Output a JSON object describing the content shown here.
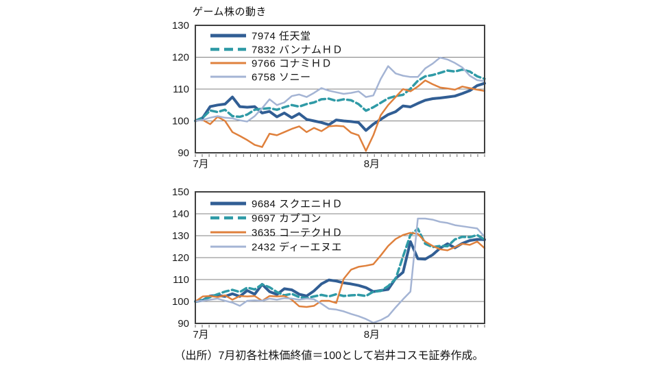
{
  "page": {
    "source_note": "（出所）7月初各社株価終値＝100として岩井コスモ証券作成。"
  },
  "chart_data": [
    {
      "type": "line",
      "title": "ゲーム株の動き",
      "ylim": [
        90,
        130
      ],
      "yticks": [
        90,
        100,
        110,
        120,
        130
      ],
      "grid": true,
      "legend_position": "top-left",
      "x_axis": {
        "labels": [
          "7月",
          "8月"
        ],
        "month_fraction": 0.61,
        "minor_tick_count": 43
      },
      "series": [
        {
          "code": "7974",
          "name": "7974 任天堂",
          "color": "#315E94",
          "style": "solid",
          "width": 4,
          "values": [
            100,
            101,
            104.5,
            105,
            105.3,
            107.5,
            104.5,
            104.3,
            104.5,
            102.5,
            103,
            101.3,
            102.5,
            101,
            102.3,
            100.5,
            100,
            99.5,
            98.8,
            100.3,
            100,
            99.8,
            99.5,
            97,
            99,
            100.5,
            102,
            102.9,
            104.7,
            104.4,
            105.5,
            106.5,
            107,
            107.2,
            107.5,
            107.8,
            108.6,
            109.5,
            111.1,
            111.8
          ]
        },
        {
          "code": "7832",
          "name": "7832 バンナムＨＤ",
          "color": "#2F9AA6",
          "style": "dashed",
          "width": 3.5,
          "values": [
            100,
            101,
            103.3,
            102.8,
            103.5,
            101.5,
            101.3,
            102,
            103.5,
            103.8,
            104,
            103.5,
            104.3,
            105,
            104.5,
            105.3,
            105.8,
            106.8,
            107,
            106.3,
            106.8,
            106.5,
            105.3,
            103.2,
            104.3,
            105.7,
            107.1,
            107.8,
            108.2,
            110.1,
            112.6,
            114,
            114.4,
            115.1,
            115.8,
            115.5,
            116.1,
            115.5,
            114,
            113.2
          ]
        },
        {
          "code": "9766",
          "name": "9766 コナミＨＤ",
          "color": "#DF803C",
          "style": "solid",
          "width": 2.5,
          "values": [
            100,
            100.3,
            99,
            101.3,
            100,
            96.5,
            95.3,
            94,
            92.5,
            91.8,
            96,
            95.5,
            96.5,
            97.5,
            98.3,
            96.5,
            97.8,
            96.8,
            98.3,
            98.5,
            98.3,
            96.3,
            95.5,
            90.6,
            95.5,
            101.8,
            105,
            107.5,
            110,
            109.3,
            110.8,
            112.7,
            111.5,
            110.5,
            110.2,
            109.8,
            110.8,
            110.3,
            109.8,
            109.4
          ]
        },
        {
          "code": "6758",
          "name": "6758 ソニー",
          "color": "#A4B4D4",
          "style": "solid",
          "width": 2.5,
          "values": [
            100,
            100.3,
            101,
            101.5,
            101,
            100.8,
            100.2,
            99.8,
            101.5,
            104,
            106.8,
            105,
            105.8,
            107.8,
            108.3,
            107.5,
            108.8,
            110.3,
            109.5,
            109,
            108.5,
            108.8,
            109.3,
            107.5,
            108,
            113.2,
            117.2,
            114.9,
            114.2,
            113.8,
            113.8,
            116.5,
            118,
            119.9,
            119.3,
            118.2,
            116.8,
            114.2,
            112.8,
            112.5
          ]
        }
      ]
    },
    {
      "type": "line",
      "title": "",
      "ylim": [
        90,
        150
      ],
      "yticks": [
        90,
        100,
        110,
        120,
        130,
        140,
        150
      ],
      "grid": true,
      "legend_position": "top-left",
      "x_axis": {
        "labels": [
          "7月",
          "8月"
        ],
        "month_fraction": 0.61,
        "minor_tick_count": 43
      },
      "series": [
        {
          "code": "9684",
          "name": "9684 スクエニＨＤ",
          "color": "#315E94",
          "style": "solid",
          "width": 4,
          "values": [
            100,
            100.5,
            102.5,
            102.8,
            102.3,
            103.5,
            102.3,
            105,
            103.3,
            107.8,
            104.5,
            103.2,
            105.8,
            105.3,
            103.3,
            102.5,
            104.8,
            108,
            109.8,
            109.3,
            108.5,
            108,
            107.3,
            106.3,
            104.5,
            105,
            105.5,
            110.5,
            113.3,
            127.3,
            119.5,
            119.3,
            121.3,
            124.3,
            126.3,
            124.5,
            126.5,
            127.8,
            128.3,
            128.2
          ]
        },
        {
          "code": "9697",
          "name": "9697 カプコン",
          "color": "#2F9AA6",
          "style": "dashed",
          "width": 3.5,
          "values": [
            100,
            100.8,
            102,
            103.3,
            104.5,
            105.3,
            104.3,
            106.3,
            105.5,
            107.8,
            106.5,
            104.3,
            102.8,
            103.5,
            102,
            101.5,
            102.3,
            103,
            102.3,
            103.3,
            102.5,
            102.8,
            103,
            102.5,
            104.5,
            104.8,
            107,
            110.3,
            120.5,
            130.3,
            133.2,
            126.3,
            124.8,
            125.3,
            125.2,
            128.3,
            129.5,
            129.3,
            130.3,
            128.2
          ]
        },
        {
          "code": "3635",
          "name": "3635 コーテクＨＤ",
          "color": "#DF803C",
          "style": "solid",
          "width": 2.5,
          "values": [
            100,
            102.3,
            102.5,
            102,
            102.8,
            100.8,
            102.5,
            102.3,
            102.5,
            100.3,
            102.5,
            102.3,
            102.5,
            100.8,
            97.8,
            97.5,
            98,
            100.3,
            100.3,
            99.3,
            110.3,
            114.5,
            115.8,
            116.3,
            117,
            121,
            125.3,
            128.5,
            130.3,
            131.3,
            130.8,
            127.3,
            125.3,
            123.8,
            123.3,
            124.8,
            126.3,
            125.8,
            127.3,
            124.3
          ]
        },
        {
          "code": "2432",
          "name": "2432 ディーエヌエ",
          "color": "#A4B4D4",
          "style": "solid",
          "width": 2.5,
          "values": [
            100,
            100.3,
            100.8,
            101.3,
            100.3,
            99.5,
            98,
            100.3,
            100.5,
            100.3,
            101.3,
            100.8,
            101.5,
            101.3,
            100.8,
            101.3,
            101,
            99,
            96.7,
            96.3,
            95.5,
            94.3,
            93.3,
            92,
            90.3,
            91.5,
            93.3,
            97.3,
            101,
            104.5,
            137.8,
            137.8,
            137.3,
            136.3,
            135.8,
            134.8,
            134.3,
            133.8,
            133.3,
            129.5
          ]
        }
      ]
    }
  ],
  "style": {
    "grid_color": "#808080",
    "border_color": "#3f3f3f",
    "tick_color": "#666666",
    "text_color": "#1a1a1a"
  }
}
